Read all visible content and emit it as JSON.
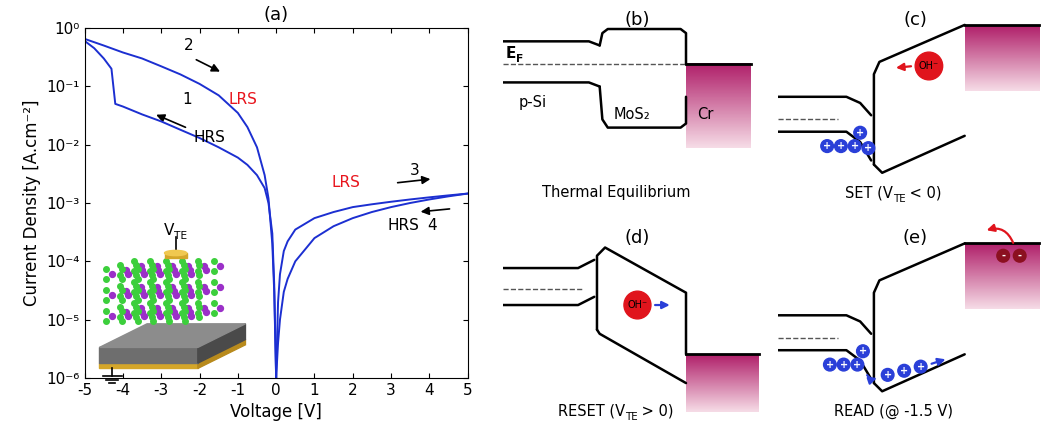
{
  "chart_data": {
    "type": "line",
    "panel_label": "(a)",
    "x_label": "Voltage [V]",
    "y_label": "Current Density [A.cm⁻²]",
    "log": "y",
    "xlim": [
      -5,
      5
    ],
    "xticks": [
      -5,
      -4,
      -3,
      -2,
      -1,
      0,
      1,
      2,
      3,
      4,
      5
    ],
    "ylim": [
      1e-06,
      1
    ],
    "yticks": [
      {
        "value": 1e-06,
        "label": "10⁻⁶"
      },
      {
        "value": 1e-05,
        "label": "10⁻⁵"
      },
      {
        "value": 0.0001,
        "label": "10⁻⁴"
      },
      {
        "value": 0.001,
        "label": "10⁻³"
      },
      {
        "value": 0.01,
        "label": "10⁻²"
      },
      {
        "value": 0.1,
        "label": "10⁻¹"
      },
      {
        "value": 1,
        "label": "10⁰"
      }
    ],
    "series": [
      {
        "color": "#1c2fd1",
        "x": [
          0,
          -0.05,
          -0.1,
          -0.2,
          -0.3,
          -0.5,
          -0.75,
          -1,
          -1.5,
          -2,
          -2.5,
          -3,
          -3.5,
          -4,
          -4.2,
          -4.25,
          -4.3,
          -4.5,
          -4.75,
          -5
        ],
        "values": [
          1e-06,
          4e-05,
          0.0003,
          0.001,
          0.0018,
          0.003,
          0.0045,
          0.006,
          0.009,
          0.013,
          0.018,
          0.025,
          0.033,
          0.045,
          0.05,
          0.1,
          0.2,
          0.3,
          0.45,
          0.6
        ]
      },
      {
        "color": "#1c2fd1",
        "x": [
          -5,
          -4.5,
          -4,
          -3.5,
          -3,
          -2.5,
          -2,
          -1.5,
          -1,
          -0.75,
          -0.5,
          -0.3,
          -0.2,
          -0.1,
          -0.05,
          0
        ],
        "values": [
          0.65,
          0.5,
          0.38,
          0.3,
          0.22,
          0.16,
          0.11,
          0.07,
          0.035,
          0.02,
          0.009,
          0.003,
          0.0012,
          0.0002,
          3e-05,
          1e-06
        ]
      },
      {
        "color": "#1c2fd1",
        "x": [
          0,
          0.05,
          0.1,
          0.2,
          0.3,
          0.5,
          1,
          1.5,
          2,
          2.5,
          3,
          3.5,
          4,
          4.5,
          5
        ],
        "values": [
          1e-06,
          2e-05,
          6e-05,
          0.00015,
          0.00022,
          0.00035,
          0.00055,
          0.0007,
          0.00085,
          0.00095,
          0.00105,
          0.00115,
          0.00125,
          0.00135,
          0.00145
        ]
      },
      {
        "color": "#1c2fd1",
        "x": [
          5,
          4.5,
          4,
          3.5,
          3,
          2.5,
          2,
          1.5,
          1,
          0.5,
          0.3,
          0.2,
          0.1,
          0.05,
          0
        ],
        "values": [
          0.00145,
          0.0013,
          0.00115,
          0.001,
          0.00085,
          0.0007,
          0.00055,
          0.0004,
          0.00025,
          0.0001,
          5e-05,
          3e-05,
          1e-05,
          4e-06,
          1e-06
        ]
      }
    ],
    "annotations": [
      {
        "text": "1",
        "color": "#000000"
      },
      {
        "text": "HRS",
        "color": "#000000"
      },
      {
        "text": "2",
        "color": "#000000"
      },
      {
        "text": "LRS",
        "color": "#e8141c"
      },
      {
        "text": "LRS",
        "color": "#e8141c"
      },
      {
        "text": "3",
        "color": "#000000"
      },
      {
        "text": "HRS",
        "color": "#000000"
      },
      {
        "text": "4",
        "color": "#000000"
      }
    ],
    "inset": {
      "label": [
        {
          "text": "V"
        },
        {
          "text": "TE",
          "sub": true
        }
      ]
    }
  },
  "diagrams": {
    "b": {
      "label": "(b)",
      "caption": [
        {
          "text": "Thermal Equilibrium"
        }
      ],
      "fermi": [
        {
          "text": "E"
        },
        {
          "text": "F",
          "sub": true
        }
      ],
      "regions": [
        "p-Si",
        "MoS₂",
        "Cr"
      ]
    },
    "c": {
      "label": "(c)",
      "caption": [
        {
          "text": "SET (V"
        },
        {
          "text": "TE",
          "sub": true
        },
        {
          "text": " < 0)"
        }
      ],
      "ion": "OH⁻",
      "hole": "+"
    },
    "d": {
      "label": "(d)",
      "caption": [
        {
          "text": "RESET (V"
        },
        {
          "text": "TE",
          "sub": true
        },
        {
          "text": " > 0)"
        }
      ],
      "ion": "OH⁻"
    },
    "e": {
      "label": "(e)",
      "caption": [
        {
          "text": "READ (@ -1.5 V)"
        }
      ],
      "hole": "+",
      "electron": "-"
    }
  }
}
